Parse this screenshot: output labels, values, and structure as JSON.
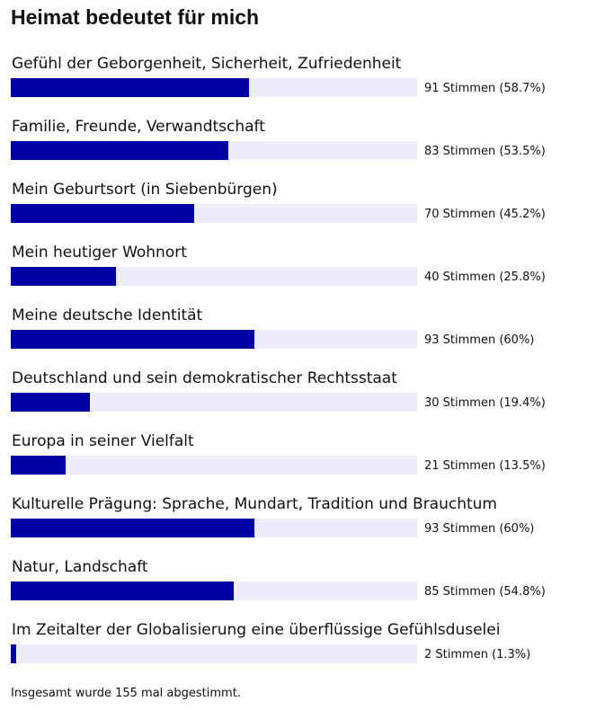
{
  "chart_data": {
    "type": "bar",
    "title": "Heimat bedeutet für mich",
    "orientation": "horizontal",
    "categories": [
      "Gefühl der Geborgenheit, Sicherheit, Zufriedenheit",
      "Familie, Freunde, Verwandtschaft",
      "Mein Geburtsort (in Siebenbürgen)",
      "Mein heutiger Wohnort",
      "Meine deutsche Identität",
      "Deutschland und sein demokratischer Rechtsstaat",
      "Europa in seiner Vielfalt",
      "Kulturelle Prägung: Sprache, Mundart, Tradition und Brauchtum",
      "Natur, Landschaft",
      "Im Zeitalter der Globalisierung eine überflüssige Gefühlsduselei"
    ],
    "votes": [
      91,
      83,
      70,
      40,
      93,
      30,
      21,
      93,
      85,
      2
    ],
    "values": [
      58.7,
      53.5,
      45.2,
      25.8,
      60,
      19.4,
      13.5,
      60,
      54.8,
      1.3
    ],
    "vote_labels": [
      "91 Stimmen (58.7%)",
      "83 Stimmen (53.5%)",
      "70 Stimmen (45.2%)",
      "40 Stimmen (25.8%)",
      "93 Stimmen (60%)",
      "30 Stimmen (19.4%)",
      "21 Stimmen (13.5%)",
      "93 Stimmen (60%)",
      "85 Stimmen (54.8%)",
      "2 Stimmen (1.3%)"
    ],
    "xlim": [
      0,
      100
    ],
    "total_votes": 155,
    "total_label": "Insgesamt wurde 155 mal abgestimmt.",
    "colors": {
      "bar": "#0000a4",
      "track": "#ececfa"
    }
  }
}
